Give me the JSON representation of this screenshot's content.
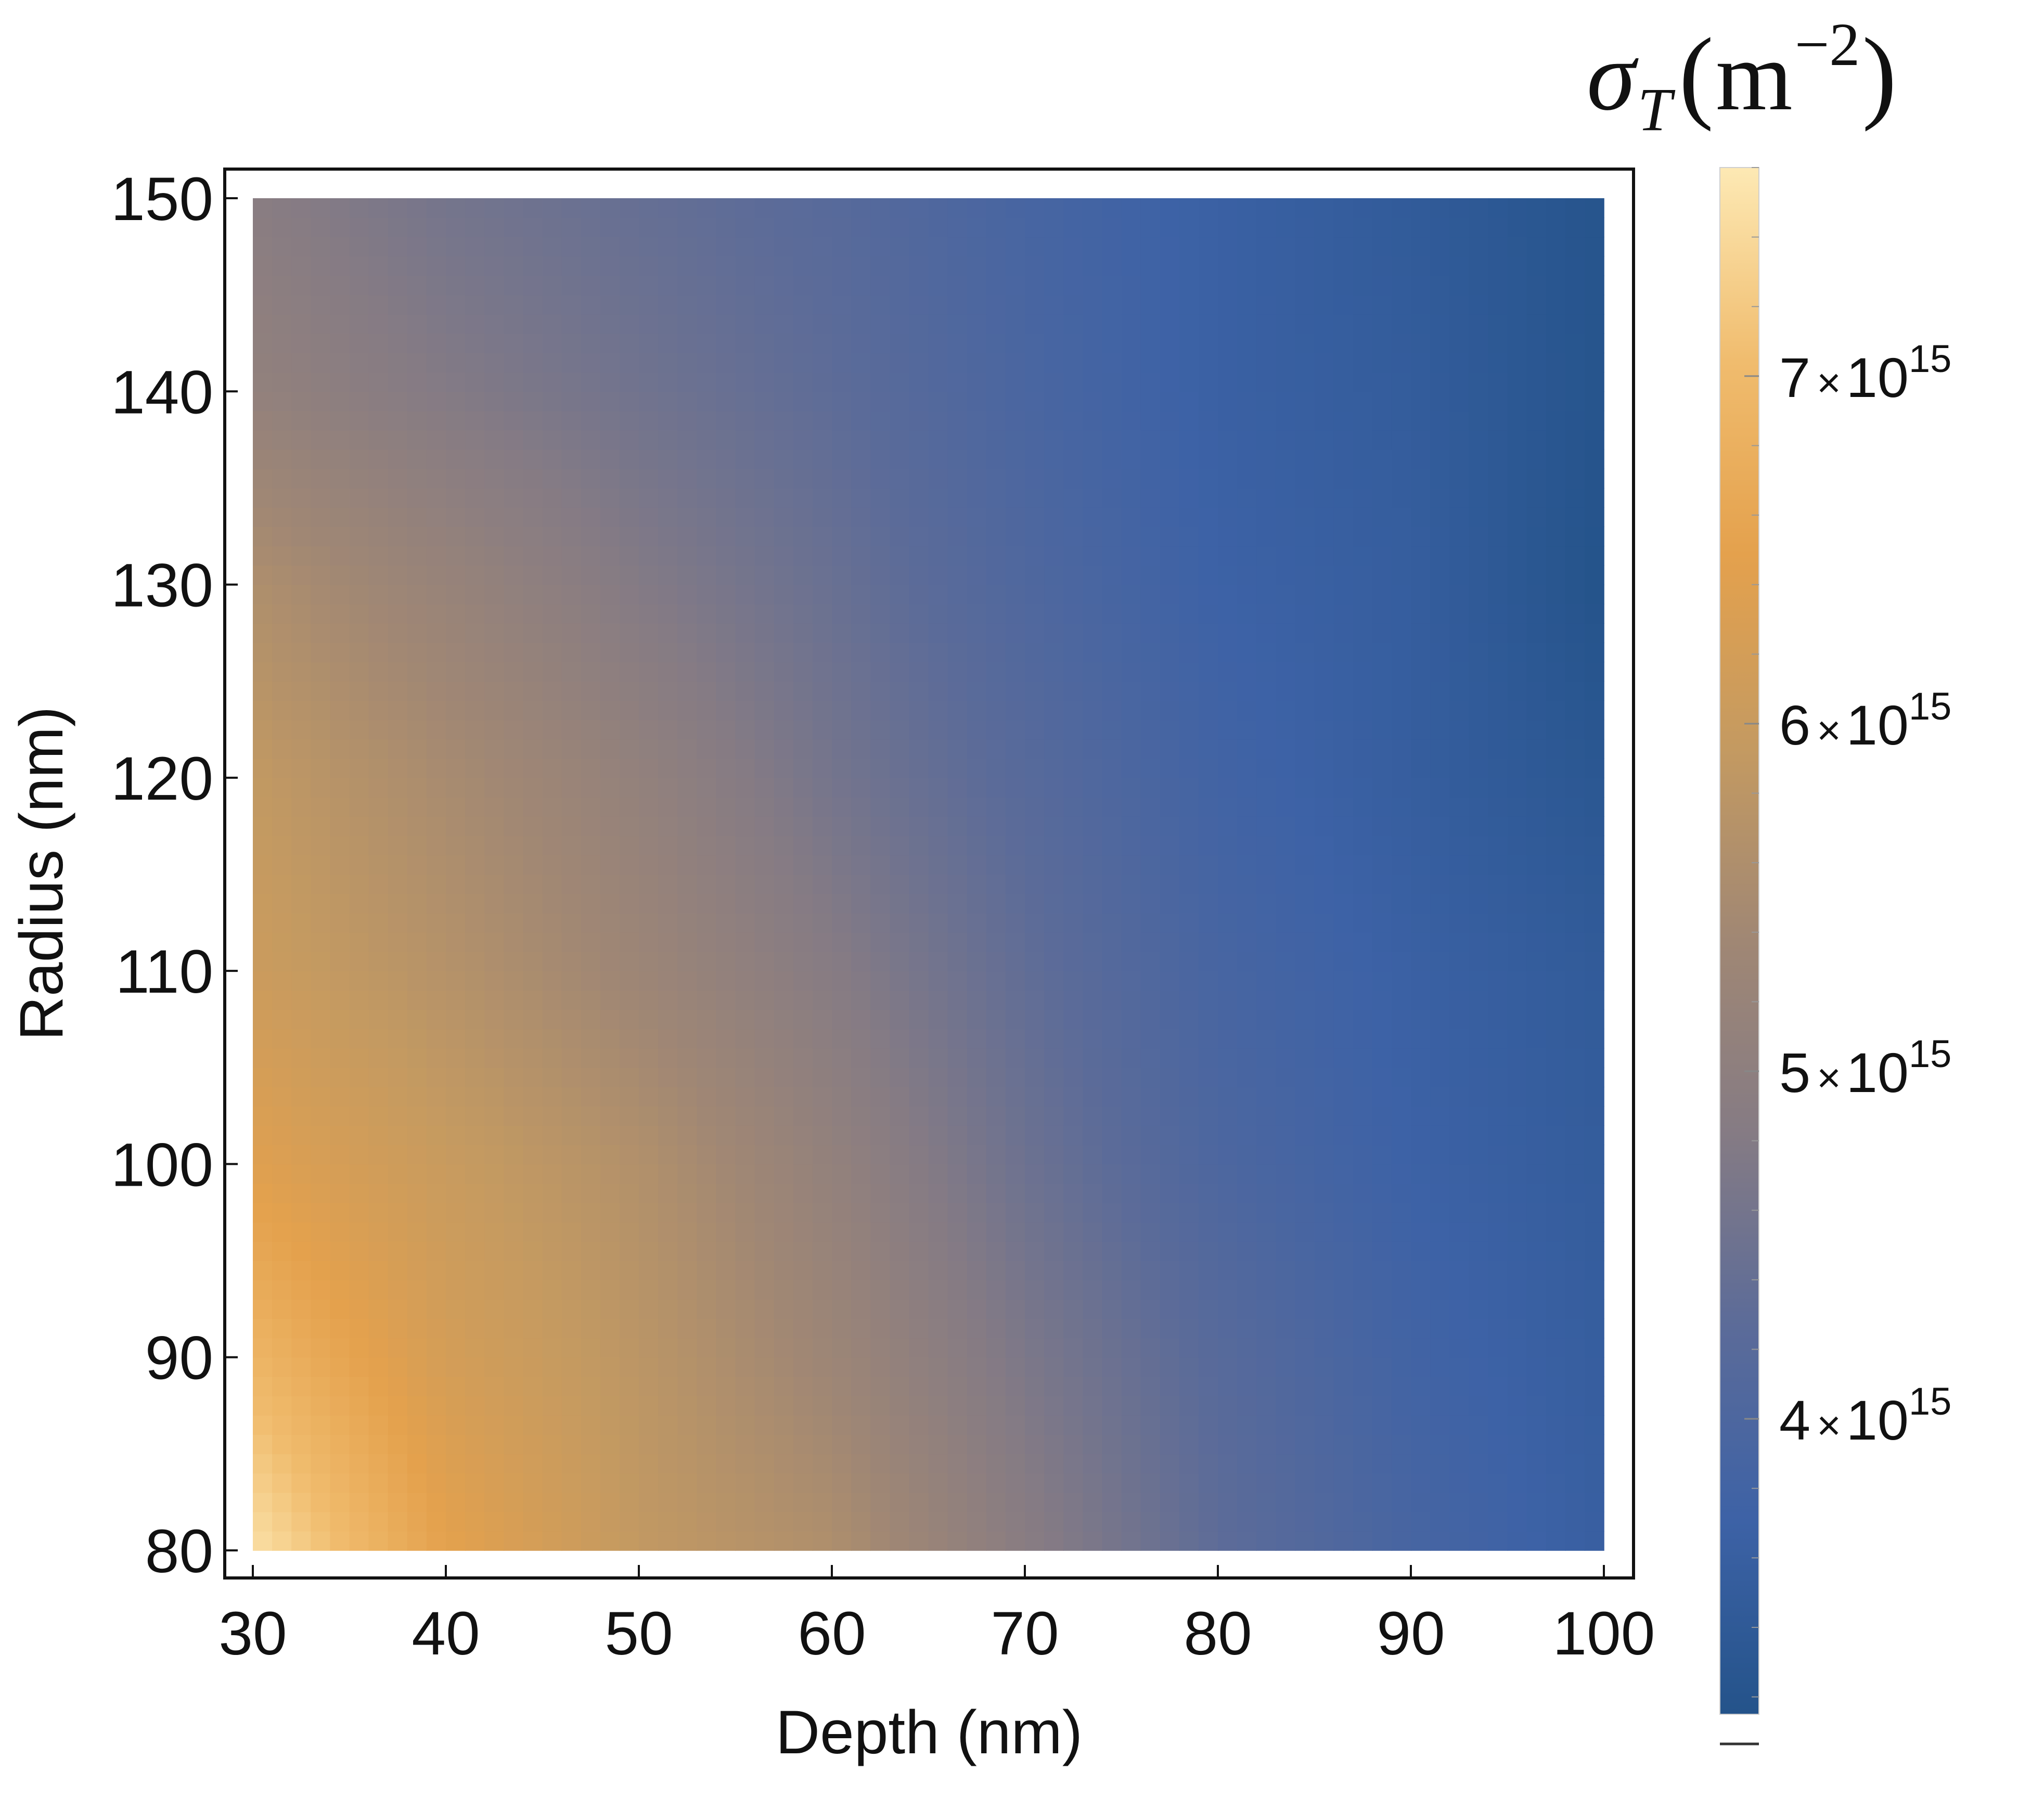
{
  "chart_data": {
    "type": "heatmap",
    "title": "",
    "xlabel": "Depth (nm)",
    "ylabel": "Radius (nm)",
    "xlim": [
      30,
      100
    ],
    "ylim": [
      80,
      150
    ],
    "x_ticks": [
      30,
      40,
      50,
      60,
      70,
      80,
      90,
      100
    ],
    "y_ticks": [
      80,
      90,
      100,
      110,
      120,
      130,
      140,
      150
    ],
    "x": [
      30,
      40,
      50,
      60,
      70,
      80,
      90,
      100
    ],
    "y": [
      80,
      90,
      100,
      110,
      120,
      130,
      140,
      150
    ],
    "z": [
      [
        7500000000000000.0,
        6500000000000000.0,
        5900000000000000.0,
        5600000000000000.0,
        4900000000000000.0,
        4300000000000000.0,
        3900000000000000.0,
        3600000000000000.0
      ],
      [
        6900000000000000.0,
        6200000000000000.0,
        5800000000000000.0,
        5300000000000000.0,
        4700000000000000.0,
        4200000000000000.0,
        3800000000000000.0,
        3550000000000000.0
      ],
      [
        6400000000000000.0,
        6000000000000000.0,
        5650000000000000.0,
        5100000000000000.0,
        4500000000000000.0,
        4000000000000000.0,
        3700000000000000.0,
        3500000000000000.0
      ],
      [
        6050000000000000.0,
        5700000000000000.0,
        5300000000000000.0,
        4850000000000000.0,
        4350000000000000.0,
        3900000000000000.0,
        3650000000000000.0,
        3450000000000000.0
      ],
      [
        5900000000000000.0,
        5500000000000000.0,
        5100000000000000.0,
        4600000000000000.0,
        4200000000000000.0,
        3800000000000000.0,
        3550000000000000.0,
        3300000000000000.0
      ],
      [
        5600000000000000.0,
        5200000000000000.0,
        4800000000000000.0,
        4450000000000000.0,
        4050000000000000.0,
        3700000000000000.0,
        3550000000000000.0,
        3150000000000000.0
      ],
      [
        5100000000000000.0,
        4800000000000000.0,
        4550000000000000.0,
        4300000000000000.0,
        3950000000000000.0,
        3650000000000000.0,
        3500000000000000.0,
        3200000000000000.0
      ],
      [
        4900000000000000.0,
        4600000000000000.0,
        4400000000000000.0,
        4200000000000000.0,
        3900000000000000.0,
        3650000000000000.0,
        3450000000000000.0,
        3200000000000000.0
      ]
    ],
    "colorbar": {
      "title": "σ_T (m^-2)",
      "range": [
        3150000000000000.0,
        7600000000000000.0
      ],
      "tick_values": [
        4000000000000000.0,
        5000000000000000.0,
        6000000000000000.0,
        7000000000000000.0
      ],
      "tick_mantissas": [
        "4",
        "5",
        "6",
        "7"
      ],
      "tick_base": "10",
      "tick_exponent": "15",
      "times_symbol": "×"
    },
    "grid": false
  },
  "colors": {
    "scale": [
      "#24538a",
      "#3d62a6",
      "#5b6b99",
      "#857b84",
      "#a08774",
      "#c49a61",
      "#e4a14d",
      "#f0bc6e",
      "#fde9b4"
    ],
    "frame": "#111111",
    "text": "#111111"
  },
  "text": {
    "cb_title_sigma": "σ",
    "cb_title_sub": "T",
    "cb_title_paren_open": "(",
    "cb_title_unit": "m",
    "cb_title_exp": "−2",
    "cb_title_paren_close": ")"
  }
}
